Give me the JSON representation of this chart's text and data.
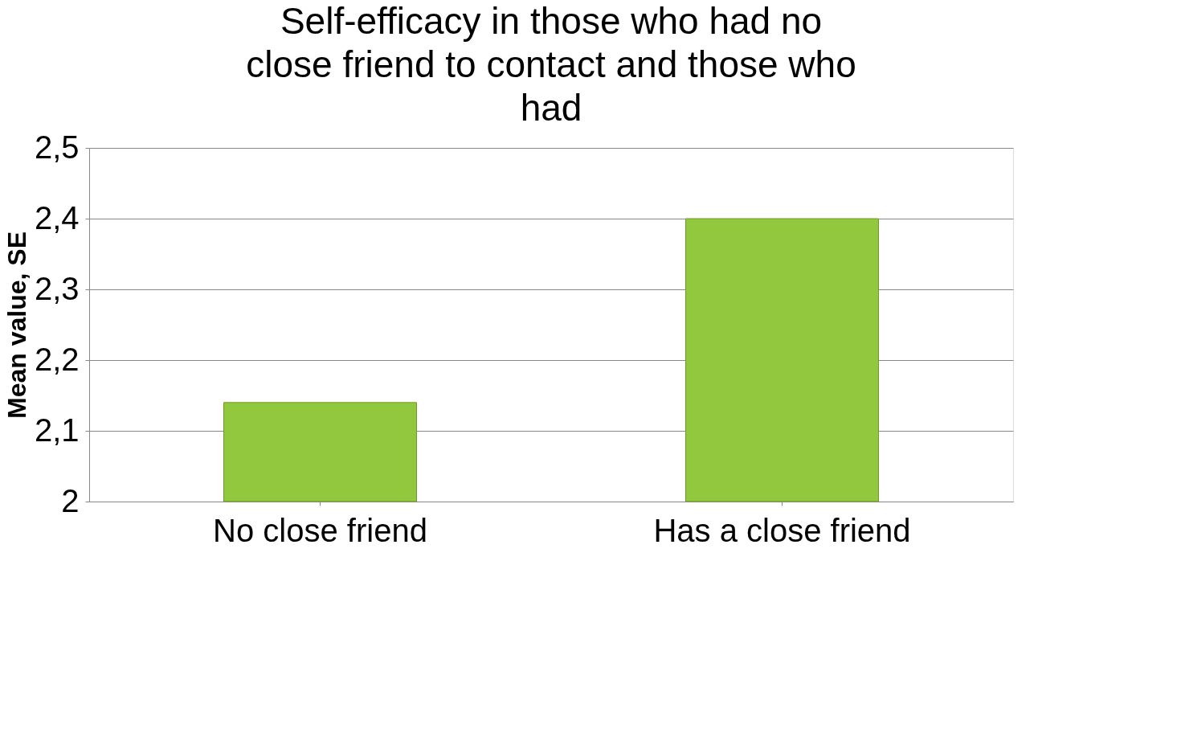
{
  "chart_data": {
    "type": "bar",
    "title": "Self-efficacy in those who had no close friend to contact and those who had",
    "ylabel": "Mean value, SE",
    "categories": [
      "No close friend",
      "Has a close friend"
    ],
    "values": [
      2.14,
      2.4
    ],
    "color": "#92c83e",
    "ylim": [
      2,
      2.5
    ],
    "yticks": [
      2,
      {
        "value": 2.1,
        "label": "2,1"
      },
      {
        "value": 2.2,
        "label": "2,2"
      },
      {
        "value": 2.3,
        "label": "2,3"
      },
      {
        "value": 2.4,
        "label": "2,4"
      },
      {
        "value": 2.5,
        "label": "2,5"
      }
    ],
    "grid": "y"
  }
}
